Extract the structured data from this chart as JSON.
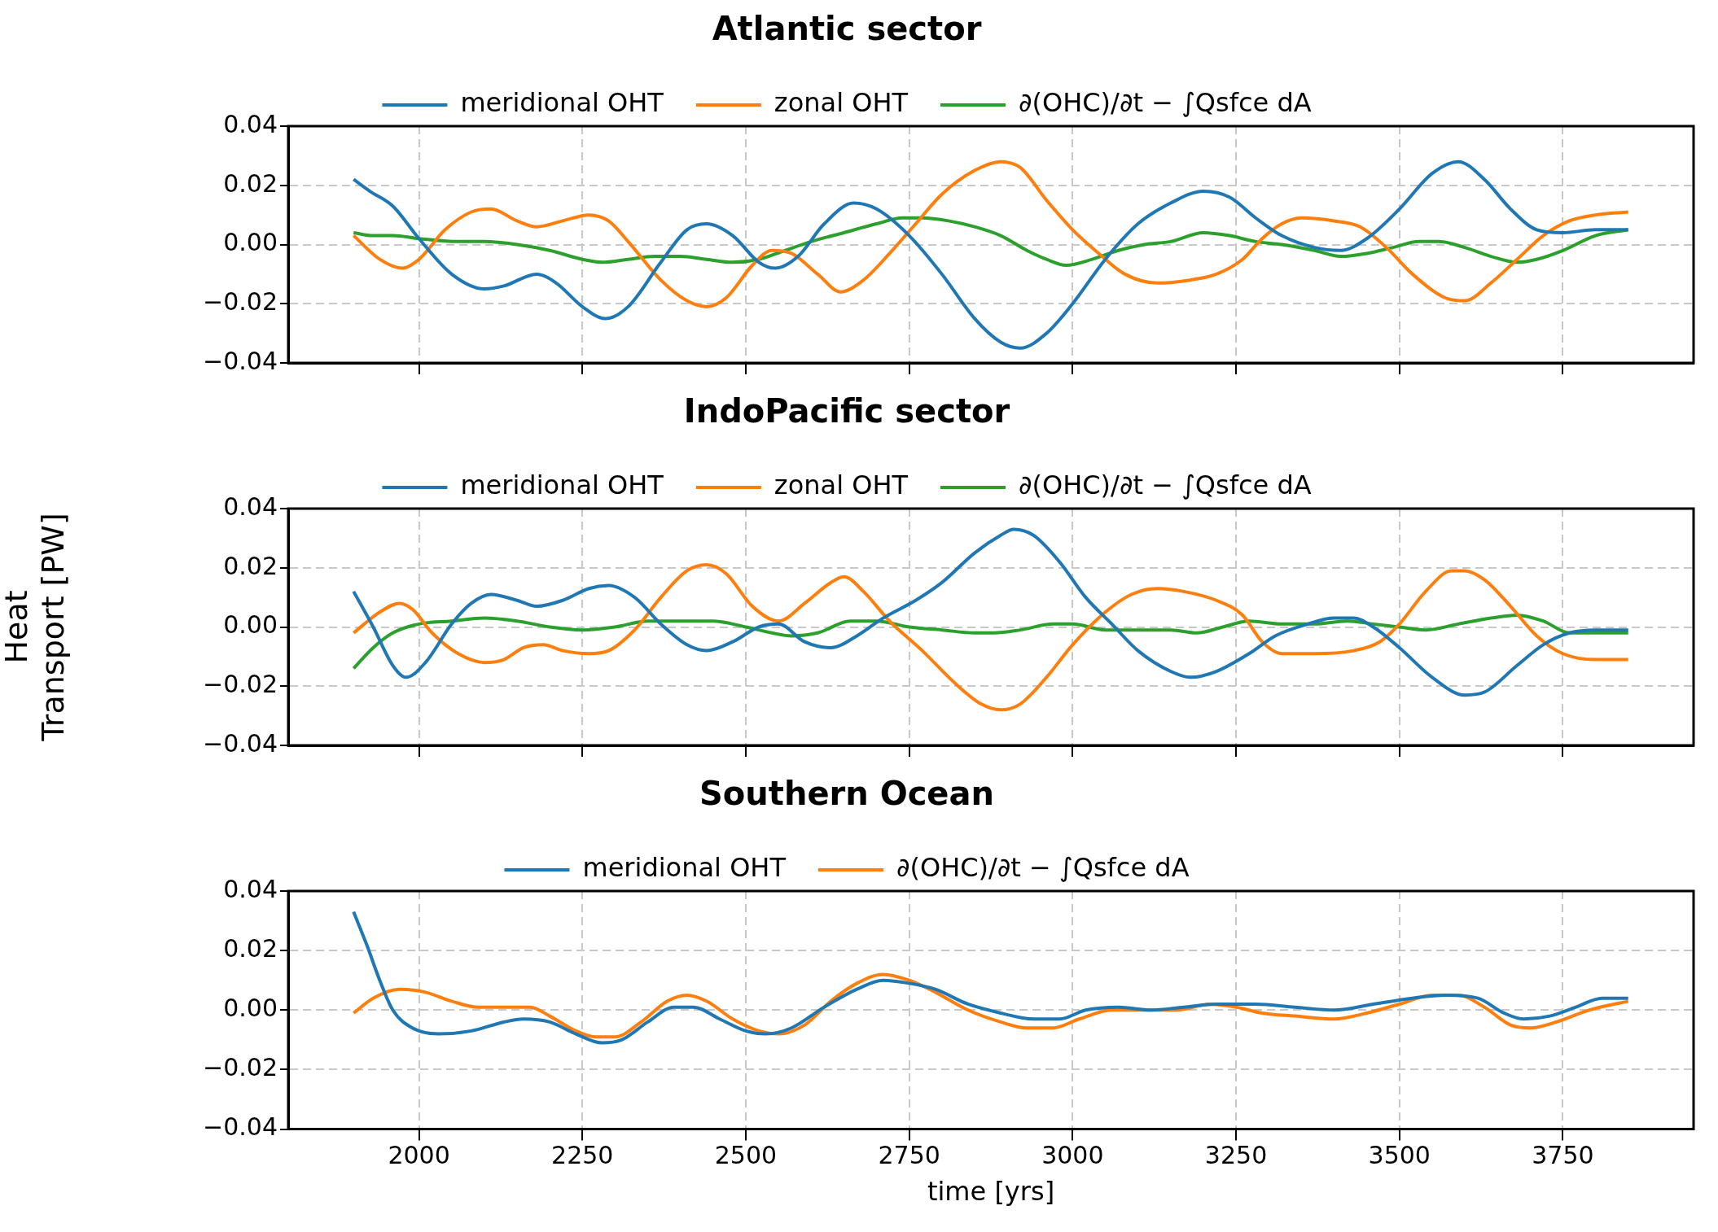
{
  "chart_data": [
    {
      "type": "line",
      "title": "Atlantic sector",
      "xlim": [
        1800,
        3950
      ],
      "xticks": [
        2000,
        2250,
        2500,
        2750,
        3000,
        3250,
        3500,
        3750
      ],
      "ylim": [
        -0.04,
        0.04
      ],
      "yticks": [
        {
          "value": -0.04,
          "label": "−0.04"
        },
        {
          "value": -0.02,
          "label": "−0.02"
        },
        {
          "value": 0,
          "label": "0.00"
        },
        {
          "value": 0.02,
          "label": "0.02"
        },
        {
          "value": 0.04,
          "label": "0.04"
        }
      ],
      "grid": true,
      "legend": "top",
      "tick_labels": "y",
      "series": [
        {
          "name": "meridional OHT",
          "color": "#1f77b4",
          "x": [
            1900,
            1925,
            1960,
            2000,
            2050,
            2100,
            2130,
            2180,
            2210,
            2250,
            2285,
            2320,
            2370,
            2410,
            2440,
            2480,
            2520,
            2545,
            2580,
            2620,
            2665,
            2700,
            2750,
            2800,
            2850,
            2890,
            2920,
            2960,
            3000,
            3050,
            3100,
            3150,
            3200,
            3240,
            3280,
            3320,
            3370,
            3410,
            3450,
            3500,
            3550,
            3590,
            3630,
            3670,
            3710,
            3750,
            3800,
            3850
          ],
          "values": [
            0.022,
            0.018,
            0.013,
            0.002,
            -0.01,
            -0.015,
            -0.014,
            -0.01,
            -0.013,
            -0.021,
            -0.025,
            -0.021,
            -0.006,
            0.005,
            0.007,
            0.003,
            -0.006,
            -0.008,
            -0.004,
            0.007,
            0.014,
            0.012,
            0.003,
            -0.01,
            -0.025,
            -0.033,
            -0.035,
            -0.03,
            -0.02,
            -0.005,
            0.007,
            0.014,
            0.018,
            0.016,
            0.009,
            0.003,
            -0.001,
            -0.002,
            0.002,
            0.012,
            0.024,
            0.028,
            0.022,
            0.012,
            0.005,
            0.004,
            0.005,
            0.005
          ]
        },
        {
          "name": "zonal OHT",
          "color": "#ff7f0e",
          "x": [
            1900,
            1940,
            1975,
            2000,
            2040,
            2080,
            2110,
            2150,
            2180,
            2220,
            2260,
            2290,
            2320,
            2370,
            2410,
            2440,
            2470,
            2510,
            2540,
            2570,
            2610,
            2645,
            2680,
            2720,
            2760,
            2800,
            2850,
            2890,
            2920,
            2960,
            3000,
            3040,
            3080,
            3130,
            3180,
            3220,
            3260,
            3290,
            3320,
            3350,
            3400,
            3440,
            3480,
            3520,
            3570,
            3600,
            3640,
            3680,
            3720,
            3760,
            3800,
            3850
          ],
          "values": [
            0.003,
            -0.005,
            -0.008,
            -0.005,
            0.005,
            0.011,
            0.012,
            0.008,
            0.006,
            0.008,
            0.01,
            0.008,
            0.001,
            -0.012,
            -0.019,
            -0.021,
            -0.018,
            -0.007,
            -0.002,
            -0.003,
            -0.01,
            -0.016,
            -0.012,
            -0.003,
            0.007,
            0.017,
            0.025,
            0.028,
            0.026,
            0.015,
            0.005,
            -0.003,
            -0.01,
            -0.013,
            -0.012,
            -0.01,
            -0.005,
            0.002,
            0.007,
            0.009,
            0.008,
            0.006,
            -0.001,
            -0.01,
            -0.018,
            -0.019,
            -0.013,
            -0.005,
            0.003,
            0.008,
            0.01,
            0.011
          ]
        },
        {
          "name": "∂(OHC)/∂t − ∫Qsfce dA",
          "color": "#2ca02c",
          "x": [
            1900,
            1930,
            1960,
            2000,
            2060,
            2100,
            2150,
            2200,
            2250,
            2280,
            2320,
            2360,
            2400,
            2440,
            2480,
            2520,
            2560,
            2600,
            2650,
            2700,
            2740,
            2770,
            2810,
            2850,
            2890,
            2930,
            2960,
            2990,
            3030,
            3070,
            3110,
            3150,
            3200,
            3240,
            3280,
            3320,
            3370,
            3410,
            3450,
            3490,
            3530,
            3560,
            3600,
            3640,
            3680,
            3710,
            3750,
            3800,
            3850
          ],
          "values": [
            0.004,
            0.003,
            0.003,
            0.002,
            0.001,
            0.001,
            0.0,
            -0.002,
            -0.005,
            -0.006,
            -0.005,
            -0.004,
            -0.004,
            -0.005,
            -0.006,
            -0.005,
            -0.002,
            0.001,
            0.004,
            0.007,
            0.009,
            0.009,
            0.008,
            0.006,
            0.003,
            -0.002,
            -0.005,
            -0.007,
            -0.005,
            -0.002,
            0.0,
            0.001,
            0.004,
            0.003,
            0.001,
            0.0,
            -0.002,
            -0.004,
            -0.003,
            -0.001,
            0.001,
            0.001,
            -0.001,
            -0.004,
            -0.006,
            -0.005,
            -0.002,
            0.003,
            0.005
          ]
        }
      ]
    },
    {
      "type": "line",
      "title": "IndoPacific sector",
      "ylabel": "Heat\nTransport [PW]",
      "xlim": [
        1800,
        3950
      ],
      "xticks": [
        2000,
        2250,
        2500,
        2750,
        3000,
        3250,
        3500,
        3750
      ],
      "ylim": [
        -0.04,
        0.04
      ],
      "yticks": [
        {
          "value": -0.04,
          "label": "−0.04"
        },
        {
          "value": -0.02,
          "label": "−0.02"
        },
        {
          "value": 0,
          "label": "0.00"
        },
        {
          "value": 0.02,
          "label": "0.02"
        },
        {
          "value": 0.04,
          "label": "0.04"
        }
      ],
      "grid": true,
      "legend": "top",
      "tick_labels": "y",
      "series": [
        {
          "name": "meridional OHT",
          "color": "#1f77b4",
          "x": [
            1900,
            1930,
            1960,
            1980,
            2010,
            2050,
            2080,
            2110,
            2150,
            2180,
            2220,
            2260,
            2290,
            2330,
            2370,
            2410,
            2440,
            2480,
            2520,
            2550,
            2590,
            2630,
            2670,
            2710,
            2760,
            2800,
            2850,
            2890,
            2910,
            2940,
            2980,
            3020,
            3060,
            3100,
            3150,
            3180,
            3220,
            3270,
            3310,
            3360,
            3400,
            3430,
            3460,
            3500,
            3550,
            3600,
            3630,
            3680,
            3720,
            3760,
            3800,
            3850
          ],
          "values": [
            0.012,
            0.0,
            -0.013,
            -0.017,
            -0.012,
            0.001,
            0.008,
            0.011,
            0.009,
            0.007,
            0.009,
            0.013,
            0.014,
            0.01,
            0.001,
            -0.006,
            -0.008,
            -0.005,
            0.0,
            0.001,
            -0.005,
            -0.007,
            -0.003,
            0.003,
            0.009,
            0.015,
            0.025,
            0.031,
            0.033,
            0.031,
            0.022,
            0.01,
            0.001,
            -0.008,
            -0.015,
            -0.017,
            -0.015,
            -0.009,
            -0.003,
            0.001,
            0.003,
            0.003,
            0.0,
            -0.007,
            -0.017,
            -0.023,
            -0.022,
            -0.013,
            -0.006,
            -0.002,
            -0.001,
            -0.001
          ]
        },
        {
          "name": "zonal OHT",
          "color": "#ff7f0e",
          "x": [
            1900,
            1940,
            1970,
            1990,
            2020,
            2060,
            2100,
            2130,
            2160,
            2190,
            2220,
            2260,
            2290,
            2330,
            2370,
            2410,
            2440,
            2470,
            2510,
            2550,
            2590,
            2630,
            2650,
            2680,
            2720,
            2770,
            2820,
            2860,
            2890,
            2920,
            2960,
            3000,
            3050,
            3090,
            3130,
            3170,
            3220,
            3260,
            3290,
            3320,
            3370,
            3430,
            3470,
            3500,
            3540,
            3580,
            3600,
            3630,
            3670,
            3710,
            3750,
            3800,
            3850
          ],
          "values": [
            -0.002,
            0.005,
            0.008,
            0.006,
            -0.002,
            -0.009,
            -0.012,
            -0.011,
            -0.007,
            -0.006,
            -0.008,
            -0.009,
            -0.008,
            -0.001,
            0.01,
            0.019,
            0.021,
            0.018,
            0.007,
            0.002,
            0.008,
            0.015,
            0.017,
            0.012,
            0.002,
            -0.008,
            -0.019,
            -0.026,
            -0.028,
            -0.026,
            -0.017,
            -0.006,
            0.005,
            0.011,
            0.013,
            0.012,
            0.009,
            0.004,
            -0.005,
            -0.009,
            -0.009,
            -0.008,
            -0.005,
            0.001,
            0.012,
            0.019,
            0.019,
            0.016,
            0.007,
            -0.003,
            -0.009,
            -0.011,
            -0.011
          ]
        },
        {
          "name": "∂(OHC)/∂t − ∫Qsfce dA",
          "color": "#2ca02c",
          "x": [
            1900,
            1930,
            1960,
            2000,
            2050,
            2100,
            2150,
            2200,
            2250,
            2300,
            2350,
            2400,
            2450,
            2500,
            2540,
            2570,
            2610,
            2660,
            2700,
            2750,
            2800,
            2850,
            2880,
            2920,
            2970,
            3000,
            3050,
            3100,
            3150,
            3190,
            3230,
            3270,
            3320,
            3370,
            3420,
            3460,
            3500,
            3540,
            3590,
            3640,
            3680,
            3720,
            3760,
            3800,
            3850
          ],
          "values": [
            -0.014,
            -0.007,
            -0.002,
            0.001,
            0.002,
            0.003,
            0.002,
            0.0,
            -0.001,
            0.0,
            0.002,
            0.002,
            0.002,
            0.0,
            -0.002,
            -0.003,
            -0.002,
            0.002,
            0.002,
            0.0,
            -0.001,
            -0.002,
            -0.002,
            -0.001,
            0.001,
            0.001,
            -0.001,
            -0.001,
            -0.001,
            -0.002,
            0.0,
            0.002,
            0.001,
            0.001,
            0.002,
            0.001,
            0.0,
            -0.001,
            0.001,
            0.003,
            0.004,
            0.002,
            -0.002,
            -0.002,
            -0.002
          ]
        }
      ]
    },
    {
      "type": "line",
      "title": "Southern Ocean",
      "xlabel": "time [yrs]",
      "xlim": [
        1800,
        3950
      ],
      "xticks": [
        2000,
        2250,
        2500,
        2750,
        3000,
        3250,
        3500,
        3750
      ],
      "ylim": [
        -0.04,
        0.04
      ],
      "yticks": [
        {
          "value": -0.04,
          "label": "−0.04"
        },
        {
          "value": -0.02,
          "label": "−0.02"
        },
        {
          "value": 0,
          "label": "0.00"
        },
        {
          "value": 0.02,
          "label": "0.02"
        },
        {
          "value": 0.04,
          "label": "0.04"
        }
      ],
      "grid": true,
      "legend": "top",
      "series": [
        {
          "name": "meridional OHT",
          "color": "#1f77b4",
          "x": [
            1900,
            1920,
            1940,
            1960,
            1990,
            2030,
            2080,
            2130,
            2160,
            2200,
            2240,
            2280,
            2310,
            2350,
            2390,
            2420,
            2460,
            2500,
            2530,
            2570,
            2620,
            2670,
            2710,
            2750,
            2790,
            2840,
            2890,
            2940,
            2980,
            3020,
            3070,
            3120,
            3170,
            3220,
            3280,
            3340,
            3400,
            3460,
            3520,
            3570,
            3620,
            3660,
            3690,
            3730,
            3770,
            3810,
            3850
          ],
          "values": [
            0.033,
            0.022,
            0.01,
            0.0,
            -0.006,
            -0.008,
            -0.007,
            -0.004,
            -0.003,
            -0.004,
            -0.008,
            -0.011,
            -0.01,
            -0.004,
            0.001,
            0.001,
            -0.003,
            -0.007,
            -0.008,
            -0.006,
            0.001,
            0.007,
            0.01,
            0.009,
            0.007,
            0.002,
            -0.001,
            -0.003,
            -0.003,
            0.0,
            0.001,
            0.0,
            0.001,
            0.002,
            0.002,
            0.001,
            0.0,
            0.002,
            0.004,
            0.005,
            0.004,
            -0.001,
            -0.003,
            -0.002,
            0.001,
            0.004,
            0.004
          ]
        },
        {
          "name": "∂(OHC)/∂t − ∫Qsfce dA",
          "color": "#ff7f0e",
          "x": [
            1900,
            1930,
            1970,
            2010,
            2050,
            2090,
            2130,
            2170,
            2200,
            2240,
            2270,
            2300,
            2340,
            2380,
            2410,
            2440,
            2480,
            2520,
            2550,
            2590,
            2630,
            2670,
            2710,
            2750,
            2790,
            2840,
            2890,
            2930,
            2970,
            3010,
            3060,
            3110,
            3160,
            3210,
            3250,
            3290,
            3340,
            3400,
            3450,
            3500,
            3550,
            3590,
            3630,
            3670,
            3700,
            3740,
            3790,
            3850
          ],
          "values": [
            -0.001,
            0.004,
            0.007,
            0.006,
            0.003,
            0.001,
            0.001,
            0.001,
            -0.002,
            -0.007,
            -0.009,
            -0.009,
            -0.004,
            0.003,
            0.005,
            0.003,
            -0.003,
            -0.007,
            -0.008,
            -0.005,
            0.003,
            0.009,
            0.012,
            0.01,
            0.006,
            0.0,
            -0.004,
            -0.006,
            -0.006,
            -0.003,
            0.0,
            0.0,
            0.0,
            0.002,
            0.001,
            -0.001,
            -0.002,
            -0.003,
            -0.001,
            0.002,
            0.005,
            0.005,
            0.001,
            -0.005,
            -0.006,
            -0.004,
            0.0,
            0.003
          ]
        }
      ]
    }
  ]
}
